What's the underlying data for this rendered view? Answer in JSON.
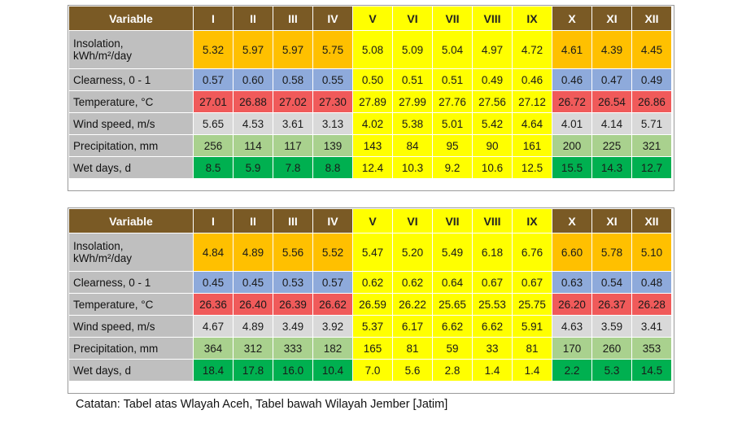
{
  "months": [
    "I",
    "II",
    "III",
    "IV",
    "V",
    "VI",
    "VII",
    "VIII",
    "IX",
    "X",
    "XI",
    "XII"
  ],
  "variable_header": "Variable",
  "row_labels": {
    "insolation": [
      "Insolation,",
      "kWh/m²/day"
    ],
    "clearness": "Clearness, 0 - 1",
    "temperature": "Temperature, °C",
    "wind": "Wind speed, m/s",
    "precip": "Precipitation, mm",
    "wet": "Wet days, d"
  },
  "tables": [
    {
      "region": "Aceh",
      "insolation": [
        "5.32",
        "5.97",
        "5.97",
        "5.75",
        "5.08",
        "5.09",
        "5.04",
        "4.97",
        "4.72",
        "4.61",
        "4.39",
        "4.45"
      ],
      "clearness": [
        "0.57",
        "0.60",
        "0.58",
        "0.55",
        "0.50",
        "0.51",
        "0.51",
        "0.49",
        "0.46",
        "0.46",
        "0.47",
        "0.49"
      ],
      "temperature": [
        "27.01",
        "26.88",
        "27.02",
        "27.30",
        "27.89",
        "27.99",
        "27.76",
        "27.56",
        "27.12",
        "26.72",
        "26.54",
        "26.86"
      ],
      "wind": [
        "5.65",
        "4.53",
        "3.61",
        "3.13",
        "4.02",
        "5.38",
        "5.01",
        "5.42",
        "4.64",
        "4.01",
        "4.14",
        "5.71"
      ],
      "precip": [
        "256",
        "114",
        "117",
        "139",
        "143",
        "84",
        "95",
        "90",
        "161",
        "200",
        "225",
        "321"
      ],
      "wet": [
        "8.5",
        "5.9",
        "7.8",
        "8.8",
        "12.4",
        "10.3",
        "9.2",
        "10.6",
        "12.5",
        "15.5",
        "14.3",
        "12.7"
      ]
    },
    {
      "region": "Jember",
      "insolation": [
        "4.84",
        "4.89",
        "5.56",
        "5.52",
        "5.47",
        "5.20",
        "5.49",
        "6.18",
        "6.76",
        "6.60",
        "5.78",
        "5.10"
      ],
      "clearness": [
        "0.45",
        "0.45",
        "0.53",
        "0.57",
        "0.62",
        "0.62",
        "0.64",
        "0.67",
        "0.67",
        "0.63",
        "0.54",
        "0.48"
      ],
      "temperature": [
        "26.36",
        "26.40",
        "26.39",
        "26.62",
        "26.59",
        "26.22",
        "25.65",
        "25.53",
        "25.75",
        "26.20",
        "26.37",
        "26.28"
      ],
      "wind": [
        "4.67",
        "4.89",
        "3.49",
        "3.92",
        "5.37",
        "6.17",
        "6.62",
        "6.62",
        "5.91",
        "4.63",
        "3.59",
        "3.41"
      ],
      "precip": [
        "364",
        "312",
        "333",
        "182",
        "165",
        "81",
        "59",
        "33",
        "81",
        "170",
        "260",
        "353"
      ],
      "wet": [
        "18.4",
        "17.8",
        "16.0",
        "10.4",
        "7.0",
        "5.6",
        "2.8",
        "1.4",
        "1.4",
        "2.2",
        "5.3",
        "14.5"
      ]
    }
  ],
  "colors": {
    "header": "#7a5a25",
    "label": "#bfbfbf",
    "insolation_edge": "#ffc000",
    "insolation_mid": "#ffff00",
    "clearness": "#8eaadb",
    "temperature": "#f05a5a",
    "wind": "#d9d9d9",
    "precip": "#a9d18e",
    "wet": "#00b050"
  },
  "note": "Catatan: Tabel atas Wlayah Aceh, Tabel bawah Wilayah Jember [Jatim]"
}
